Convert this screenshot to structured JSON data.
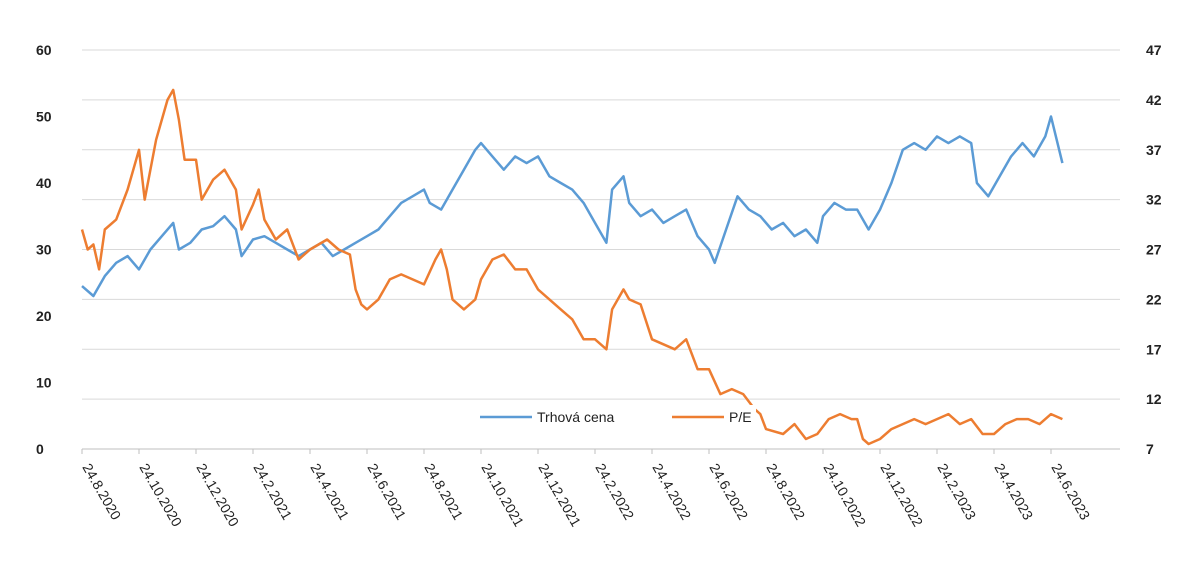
{
  "chart_data": {
    "type": "line",
    "title": "",
    "xlabel": "",
    "ylabel": "",
    "left_axis": {
      "min": 0,
      "max": 60,
      "ticks": [
        0,
        10,
        20,
        30,
        40,
        50,
        60
      ]
    },
    "right_axis": {
      "min": 7,
      "max": 47,
      "ticks": [
        7,
        12,
        17,
        22,
        27,
        32,
        37,
        42,
        47
      ]
    },
    "x_labels": [
      "24.8.2020",
      "24.10.2020",
      "24.12.2020",
      "24.2.2021",
      "24.4.2021",
      "24.6.2021",
      "24.8.2021",
      "24.10.2021",
      "24.12.2021",
      "24.2.2022",
      "24.4.2022",
      "24.6.2022",
      "24.8.2022",
      "24.10.2022",
      "24.12.2022",
      "24.2.2023",
      "24.4.2023",
      "24.6.2023"
    ],
    "grid": true,
    "legend_position": "bottom-center",
    "series": [
      {
        "name": "Trhová cena",
        "axis": "left",
        "color": "#5b9bd5",
        "points": [
          [
            0,
            24.5
          ],
          [
            0.2,
            23
          ],
          [
            0.4,
            26
          ],
          [
            0.6,
            28
          ],
          [
            0.8,
            29
          ],
          [
            1.0,
            27
          ],
          [
            1.2,
            30
          ],
          [
            1.4,
            32
          ],
          [
            1.6,
            34
          ],
          [
            1.7,
            30
          ],
          [
            1.9,
            31
          ],
          [
            2.1,
            33
          ],
          [
            2.3,
            33.5
          ],
          [
            2.5,
            35
          ],
          [
            2.7,
            33
          ],
          [
            2.8,
            29
          ],
          [
            3.0,
            31.5
          ],
          [
            3.2,
            32
          ],
          [
            3.4,
            31
          ],
          [
            3.6,
            30
          ],
          [
            3.8,
            29
          ],
          [
            4.0,
            30
          ],
          [
            4.2,
            31
          ],
          [
            4.4,
            29
          ],
          [
            4.6,
            30
          ],
          [
            4.8,
            31
          ],
          [
            5.0,
            32
          ],
          [
            5.2,
            33
          ],
          [
            5.4,
            35
          ],
          [
            5.6,
            37
          ],
          [
            5.8,
            38
          ],
          [
            6.0,
            39
          ],
          [
            6.1,
            37
          ],
          [
            6.3,
            36
          ],
          [
            6.5,
            39
          ],
          [
            6.7,
            42
          ],
          [
            6.9,
            45
          ],
          [
            7.0,
            46
          ],
          [
            7.2,
            44
          ],
          [
            7.4,
            42
          ],
          [
            7.6,
            44
          ],
          [
            7.8,
            43
          ],
          [
            8.0,
            44
          ],
          [
            8.2,
            41
          ],
          [
            8.4,
            40
          ],
          [
            8.6,
            39
          ],
          [
            8.8,
            37
          ],
          [
            9.0,
            34
          ],
          [
            9.2,
            31
          ],
          [
            9.3,
            39
          ],
          [
            9.5,
            41
          ],
          [
            9.6,
            37
          ],
          [
            9.8,
            35
          ],
          [
            10.0,
            36
          ],
          [
            10.2,
            34
          ],
          [
            10.4,
            35
          ],
          [
            10.6,
            36
          ],
          [
            10.8,
            32
          ],
          [
            11.0,
            30
          ],
          [
            11.1,
            28
          ],
          [
            11.3,
            33
          ],
          [
            11.5,
            38
          ],
          [
            11.7,
            36
          ],
          [
            11.9,
            35
          ],
          [
            12.1,
            33
          ],
          [
            12.3,
            34
          ],
          [
            12.5,
            32
          ],
          [
            12.7,
            33
          ],
          [
            12.9,
            31
          ],
          [
            13.0,
            35
          ],
          [
            13.2,
            37
          ],
          [
            13.4,
            36
          ],
          [
            13.6,
            36
          ],
          [
            13.8,
            33
          ],
          [
            14.0,
            36
          ],
          [
            14.2,
            40
          ],
          [
            14.4,
            45
          ],
          [
            14.6,
            46
          ],
          [
            14.8,
            45
          ],
          [
            15.0,
            47
          ],
          [
            15.2,
            46
          ],
          [
            15.4,
            47
          ],
          [
            15.6,
            46
          ],
          [
            15.7,
            40
          ],
          [
            15.9,
            38
          ],
          [
            16.1,
            41
          ],
          [
            16.3,
            44
          ],
          [
            16.5,
            46
          ],
          [
            16.7,
            44
          ],
          [
            16.9,
            47
          ],
          [
            17.0,
            50
          ],
          [
            17.2,
            43
          ]
        ]
      },
      {
        "name": "P/E",
        "axis": "right",
        "color": "#ed7d31",
        "points": [
          [
            0,
            29
          ],
          [
            0.1,
            27
          ],
          [
            0.2,
            27.5
          ],
          [
            0.3,
            25
          ],
          [
            0.4,
            29
          ],
          [
            0.6,
            30
          ],
          [
            0.8,
            33
          ],
          [
            1.0,
            37
          ],
          [
            1.1,
            32
          ],
          [
            1.3,
            38
          ],
          [
            1.5,
            42
          ],
          [
            1.6,
            43
          ],
          [
            1.7,
            40
          ],
          [
            1.8,
            36
          ],
          [
            2.0,
            36
          ],
          [
            2.1,
            32
          ],
          [
            2.3,
            34
          ],
          [
            2.5,
            35
          ],
          [
            2.7,
            33
          ],
          [
            2.8,
            29
          ],
          [
            3.0,
            31.5
          ],
          [
            3.1,
            33
          ],
          [
            3.2,
            30
          ],
          [
            3.4,
            28
          ],
          [
            3.6,
            29
          ],
          [
            3.8,
            26
          ],
          [
            4.0,
            27
          ],
          [
            4.3,
            28
          ],
          [
            4.5,
            27
          ],
          [
            4.7,
            26.5
          ],
          [
            4.8,
            23
          ],
          [
            4.9,
            21.5
          ],
          [
            5.0,
            21
          ],
          [
            5.2,
            22
          ],
          [
            5.4,
            24
          ],
          [
            5.6,
            24.5
          ],
          [
            5.8,
            24
          ],
          [
            6.0,
            23.5
          ],
          [
            6.2,
            26
          ],
          [
            6.3,
            27
          ],
          [
            6.4,
            25
          ],
          [
            6.5,
            22
          ],
          [
            6.7,
            21
          ],
          [
            6.9,
            22
          ],
          [
            7.0,
            24
          ],
          [
            7.2,
            26
          ],
          [
            7.4,
            26.5
          ],
          [
            7.6,
            25
          ],
          [
            7.8,
            25
          ],
          [
            8.0,
            23
          ],
          [
            8.2,
            22
          ],
          [
            8.4,
            21
          ],
          [
            8.6,
            20
          ],
          [
            8.8,
            18
          ],
          [
            9.0,
            18
          ],
          [
            9.2,
            17
          ],
          [
            9.3,
            21
          ],
          [
            9.5,
            23
          ],
          [
            9.6,
            22
          ],
          [
            9.8,
            21.5
          ],
          [
            10.0,
            18
          ],
          [
            10.2,
            17.5
          ],
          [
            10.4,
            17
          ],
          [
            10.6,
            18
          ],
          [
            10.8,
            15
          ],
          [
            11.0,
            15
          ],
          [
            11.2,
            12.5
          ],
          [
            11.4,
            13
          ],
          [
            11.6,
            12.5
          ],
          [
            11.8,
            11
          ],
          [
            11.9,
            10.5
          ],
          [
            12.0,
            9
          ],
          [
            12.3,
            8.5
          ],
          [
            12.5,
            9.5
          ],
          [
            12.7,
            8
          ],
          [
            12.9,
            8.5
          ],
          [
            13.1,
            10
          ],
          [
            13.3,
            10.5
          ],
          [
            13.5,
            10
          ],
          [
            13.6,
            10
          ],
          [
            13.7,
            8
          ],
          [
            13.8,
            7.5
          ],
          [
            14.0,
            8
          ],
          [
            14.2,
            9
          ],
          [
            14.4,
            9.5
          ],
          [
            14.6,
            10
          ],
          [
            14.8,
            9.5
          ],
          [
            15.0,
            10
          ],
          [
            15.2,
            10.5
          ],
          [
            15.4,
            9.5
          ],
          [
            15.6,
            10
          ],
          [
            15.8,
            8.5
          ],
          [
            16.0,
            8.5
          ],
          [
            16.2,
            9.5
          ],
          [
            16.4,
            10
          ],
          [
            16.6,
            10
          ],
          [
            16.8,
            9.5
          ],
          [
            17.0,
            10.5
          ],
          [
            17.2,
            10
          ]
        ]
      }
    ]
  }
}
